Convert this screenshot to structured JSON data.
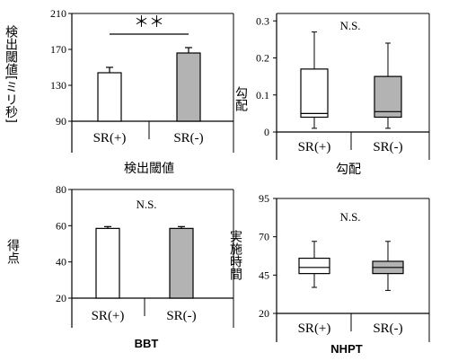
{
  "colors": {
    "white_box": "#ffffff",
    "gray_box": "#b3b3b3",
    "axis": "#000000"
  },
  "chart_data": [
    {
      "type": "bar",
      "ylabel": "検出閾値[ミリ秒]",
      "xlabel": "検出閾値",
      "categories": [
        "SR(+)",
        "SR(-)"
      ],
      "values": [
        144,
        166
      ],
      "errors": [
        6,
        6
      ],
      "ylim": [
        90,
        210
      ],
      "yticks": [
        "90",
        "130",
        "170",
        "210"
      ],
      "annotation": "＊＊"
    },
    {
      "type": "box",
      "ylabel": "勾配",
      "xlabel": "勾配",
      "categories": [
        "SR(+)",
        "SR(-)"
      ],
      "boxes": [
        {
          "min": 0.01,
          "q1": 0.04,
          "median": 0.05,
          "q3": 0.17,
          "max": 0.27
        },
        {
          "min": 0.01,
          "q1": 0.04,
          "median": 0.055,
          "q3": 0.15,
          "max": 0.24
        }
      ],
      "ylim": [
        0,
        0.32
      ],
      "yticks": [
        "0",
        "0.1",
        "0.2",
        "0.3"
      ],
      "annotation": "N.S."
    },
    {
      "type": "bar",
      "ylabel": "得点",
      "xlabel": "BBT",
      "categories": [
        "SR(+)",
        "SR(-)"
      ],
      "values": [
        58.5,
        58.5
      ],
      "errors": [
        1,
        1
      ],
      "ylim": [
        20,
        80
      ],
      "yticks": [
        "20",
        "40",
        "60",
        "80"
      ],
      "annotation": "N.S."
    },
    {
      "type": "box",
      "ylabel": "実施時間",
      "xlabel": "NHPT",
      "categories": [
        "SR(+)",
        "SR(-)"
      ],
      "boxes": [
        {
          "min": 37,
          "q1": 46,
          "median": 50,
          "q3": 56,
          "max": 67
        },
        {
          "min": 35,
          "q1": 46,
          "median": 50,
          "q3": 54,
          "max": 67
        }
      ],
      "ylim": [
        20,
        95
      ],
      "yticks": [
        "20",
        "45",
        "70",
        "95"
      ],
      "annotation": "N.S."
    }
  ]
}
